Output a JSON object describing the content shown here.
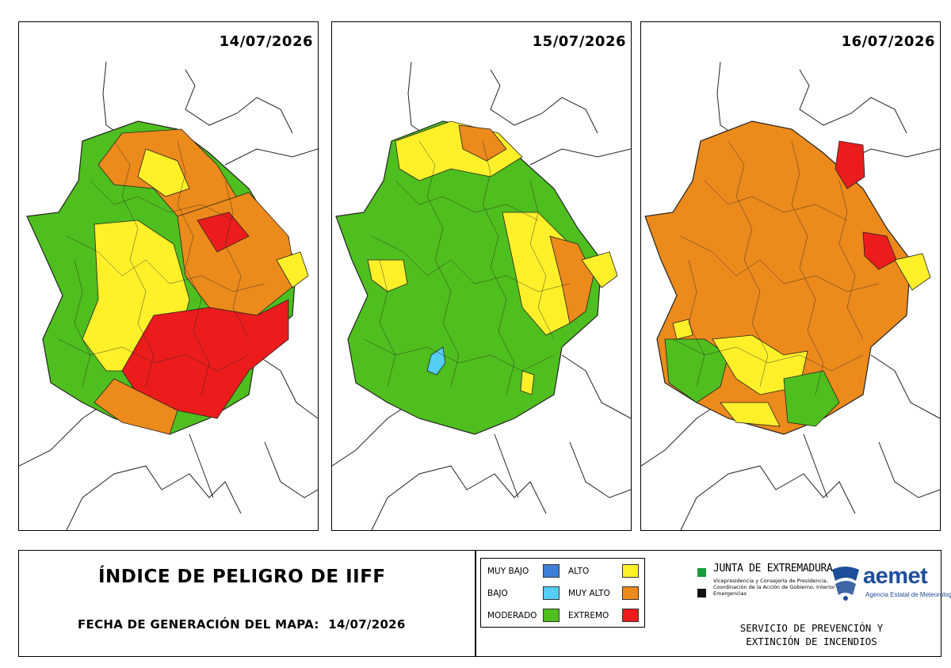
{
  "maps": [
    {
      "date": "14/07/2026"
    },
    {
      "date": "15/07/2026"
    },
    {
      "date": "16/07/2026"
    }
  ],
  "colors": {
    "muy_bajo": "#3f7fd6",
    "bajo": "#54cef5",
    "moderado": "#4fbf1f",
    "alto": "#fff02a",
    "muy_alto": "#ec8a1c",
    "extremo": "#ec1c1c",
    "junta_green": "#1a9a3a",
    "aemet_blue": "#1f4e9a"
  },
  "footer": {
    "title": "ÍNDICE DE PELIGRO DE IIFF",
    "generation_label": "FECHA DE GENERACIÓN DEL MAPA:",
    "generation_date": "14/07/2026"
  },
  "legend": {
    "items": [
      {
        "label": "MUY BAJO",
        "color": "#3f7fd6"
      },
      {
        "label": "BAJO",
        "color": "#54cef5"
      },
      {
        "label": "MODERADO",
        "color": "#4fbf1f"
      },
      {
        "label": "ALTO",
        "color": "#fff02a"
      },
      {
        "label": "MUY ALTO",
        "color": "#ec8a1c"
      },
      {
        "label": "EXTREMO",
        "color": "#ec1c1c"
      }
    ]
  },
  "junta": {
    "name": "JUNTA DE EXTREMADURA",
    "subtitle": "Vicepresidencia y Consejería de Presidencia, Coordinación de la Acción de Gobierno, Interior y Emergencias"
  },
  "aemet": {
    "name": "aemet",
    "subtitle": "Agencia Estatal de Meteorología"
  },
  "service": {
    "line1": "SERVICIO DE PREVENCIÓN Y",
    "line2": "EXTINCIÓN DE INCENDIOS"
  },
  "icons": [
    "map-of-extremadura",
    "aemet-logo-icon",
    "junta-square-icon"
  ]
}
